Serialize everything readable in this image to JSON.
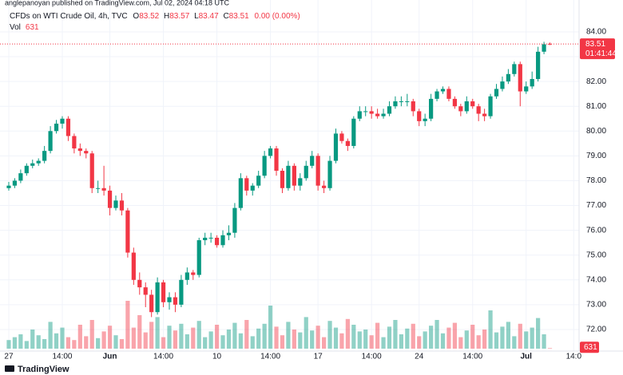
{
  "chart_data": {
    "type": "candlestick",
    "publisher": "anglepanoyan published on TradingView.com, Jul 02, 2024 04:18 UTC",
    "symbol": "CFDs on WTI Crude Oil, 4h, TVC",
    "legend": {
      "o_label": "O",
      "o": 83.52,
      "h_label": "H",
      "h": 83.57,
      "l_label": "L",
      "l": 83.47,
      "c_label": "C",
      "c": 83.51,
      "change": "0.00 (0.00%)",
      "vol_label": "Vol",
      "vol": 631
    },
    "last_price": 83.51,
    "countdown": "01:41:44",
    "brand": "TradingView",
    "up_color": "#089981",
    "down_color": "#f23645",
    "open": [
      77.7,
      77.8,
      78.0,
      78.3,
      78.6,
      78.7,
      78.8,
      79.2,
      80.0,
      80.3,
      80.5,
      79.8,
      79.3,
      79.2,
      79.1,
      77.7,
      77.7,
      77.6,
      76.9,
      77.2,
      76.8,
      75.1,
      74.0,
      73.7,
      73.4,
      72.7,
      73.9,
      73.1,
      73.3,
      73.0,
      74.0,
      74.3,
      74.2,
      75.6,
      75.7,
      75.7,
      75.4,
      75.8,
      75.9,
      76.9,
      78.1,
      77.6,
      77.8,
      78.2,
      79.0,
      79.3,
      78.4,
      77.7,
      78.6,
      77.8,
      78.1,
      78.6,
      79.0,
      77.8,
      77.7,
      78.8,
      79.9,
      79.6,
      79.4,
      80.5,
      80.8,
      80.8,
      80.7,
      80.6,
      80.7,
      81.0,
      81.2,
      81.2,
      81.2,
      80.8,
      80.4,
      80.5,
      81.3,
      81.6,
      81.7,
      81.3,
      81.0,
      80.8,
      81.2,
      81.0,
      80.7,
      80.6,
      81.4,
      81.7,
      82.0,
      82.3,
      82.7,
      81.6,
      81.8,
      82.1,
      83.2,
      83.52
    ],
    "high": [
      77.95,
      78.1,
      78.45,
      78.7,
      78.85,
      78.9,
      79.4,
      80.2,
      80.45,
      80.6,
      80.6,
      79.9,
      79.5,
      79.3,
      79.2,
      78.0,
      78.6,
      77.8,
      77.4,
      77.5,
      76.9,
      75.3,
      74.3,
      73.9,
      73.6,
      74.1,
      74.0,
      73.5,
      73.5,
      74.2,
      74.5,
      74.4,
      75.7,
      75.9,
      75.9,
      75.8,
      76.0,
      76.2,
      77.1,
      78.3,
      78.2,
      77.9,
      78.4,
      79.2,
      79.4,
      79.4,
      78.5,
      78.8,
      78.7,
      78.3,
      78.8,
      79.2,
      79.1,
      78.0,
      79.0,
      80.1,
      80.0,
      79.7,
      80.6,
      81.0,
      81.0,
      81.0,
      80.9,
      80.9,
      81.2,
      81.4,
      81.4,
      81.5,
      81.3,
      80.9,
      80.7,
      81.5,
      81.7,
      81.8,
      81.8,
      81.4,
      81.1,
      81.4,
      81.3,
      81.1,
      80.9,
      81.5,
      81.9,
      82.2,
      82.5,
      82.8,
      82.8,
      82.0,
      82.4,
      83.4,
      83.6,
      83.57
    ],
    "low": [
      77.6,
      77.7,
      77.9,
      78.2,
      78.5,
      78.6,
      78.7,
      79.1,
      79.9,
      80.1,
      79.6,
      79.1,
      79.0,
      78.9,
      77.5,
      77.5,
      77.4,
      76.6,
      76.8,
      76.6,
      74.9,
      73.8,
      73.4,
      72.9,
      72.5,
      72.6,
      72.9,
      72.8,
      72.7,
      72.9,
      73.8,
      74.0,
      74.1,
      75.4,
      75.5,
      75.3,
      75.3,
      75.6,
      75.7,
      76.8,
      77.4,
      77.4,
      77.7,
      78.1,
      78.9,
      78.2,
      77.5,
      77.6,
      77.6,
      77.6,
      78.0,
      78.5,
      77.6,
      77.5,
      77.6,
      78.7,
      79.5,
      79.2,
      79.3,
      80.4,
      80.6,
      80.5,
      80.5,
      80.5,
      80.6,
      80.9,
      81.0,
      81.0,
      80.6,
      80.2,
      80.2,
      80.4,
      81.2,
      81.5,
      81.2,
      80.9,
      80.6,
      80.7,
      80.9,
      80.4,
      80.4,
      80.5,
      81.3,
      81.6,
      81.9,
      82.2,
      81.0,
      81.5,
      81.7,
      82.0,
      83.1,
      83.47
    ],
    "close": [
      77.8,
      78.0,
      78.3,
      78.6,
      78.7,
      78.8,
      79.2,
      80.0,
      80.3,
      80.5,
      79.8,
      79.3,
      79.2,
      79.1,
      77.7,
      77.7,
      77.6,
      76.9,
      77.2,
      76.8,
      75.1,
      74.0,
      73.7,
      73.4,
      72.7,
      73.9,
      73.1,
      73.3,
      73.0,
      74.0,
      74.3,
      74.2,
      75.6,
      75.7,
      75.7,
      75.4,
      75.8,
      75.9,
      76.9,
      78.1,
      77.6,
      77.8,
      78.2,
      79.0,
      79.3,
      78.4,
      77.7,
      78.6,
      77.8,
      78.1,
      78.6,
      79.0,
      77.8,
      77.7,
      78.8,
      79.9,
      79.6,
      79.4,
      80.5,
      80.8,
      80.8,
      80.7,
      80.6,
      80.7,
      81.0,
      81.2,
      81.2,
      81.2,
      80.8,
      80.4,
      80.5,
      81.3,
      81.6,
      81.7,
      81.3,
      81.0,
      80.8,
      81.2,
      81.0,
      80.7,
      80.6,
      81.4,
      81.7,
      82.0,
      82.3,
      82.7,
      81.6,
      81.8,
      82.1,
      83.2,
      83.5,
      83.51
    ],
    "volume": [
      9000,
      12000,
      15000,
      8000,
      20000,
      14000,
      10000,
      28000,
      16000,
      22000,
      12000,
      9000,
      25000,
      13000,
      30000,
      11000,
      18000,
      24000,
      14000,
      10000,
      50000,
      22000,
      35000,
      17000,
      28000,
      33000,
      12000,
      24000,
      19000,
      26000,
      15000,
      22000,
      29000,
      12000,
      18000,
      25000,
      14000,
      20000,
      27000,
      16000,
      30000,
      13000,
      21000,
      26000,
      45000,
      23000,
      14000,
      28000,
      20000,
      17000,
      33000,
      19000,
      24000,
      12000,
      29000,
      22000,
      16000,
      31000,
      25000,
      18000,
      20000,
      14000,
      27000,
      12000,
      23000,
      30000,
      15000,
      21000,
      26000,
      13000,
      18000,
      24000,
      30000,
      16000,
      22000,
      27000,
      12000,
      19000,
      25000,
      14000,
      20000,
      40000,
      17000,
      23000,
      28000,
      13000,
      26000,
      18000,
      22000,
      32000,
      15000,
      631
    ],
    "xticks": [
      {
        "value": 0,
        "label": "27"
      },
      {
        "value": 9,
        "label": "14:00"
      },
      {
        "value": 17,
        "label": "Jun"
      },
      {
        "value": 26,
        "label": "14:00"
      },
      {
        "value": 35,
        "label": "10"
      },
      {
        "value": 44,
        "label": "14:00"
      },
      {
        "value": 52,
        "label": "17"
      },
      {
        "value": 61,
        "label": "14:00"
      },
      {
        "value": 69,
        "label": "24"
      },
      {
        "value": 78,
        "label": "14:00"
      },
      {
        "value": 87,
        "label": "Jul"
      },
      {
        "value": 95,
        "label": "14:0"
      }
    ],
    "xlim": [
      -0.4,
      95.9
    ],
    "ylim": [
      71.13,
      84.32
    ],
    "yticks": [
      {
        "value": 72,
        "label": "72.00"
      },
      {
        "value": 73,
        "label": "73.00"
      },
      {
        "value": 74,
        "label": "74.00"
      },
      {
        "value": 75,
        "label": "75.00"
      },
      {
        "value": 76,
        "label": "76.00"
      },
      {
        "value": 77,
        "label": "77.00"
      },
      {
        "value": 78,
        "label": "78.00"
      },
      {
        "value": 79,
        "label": "79.00"
      },
      {
        "value": 80,
        "label": "80.00"
      },
      {
        "value": 81,
        "label": "81.00"
      },
      {
        "value": 82,
        "label": "82.00"
      },
      {
        "value": 83,
        "label": "83.00"
      },
      {
        "value": 84,
        "label": "84.00"
      }
    ],
    "grid": true
  }
}
